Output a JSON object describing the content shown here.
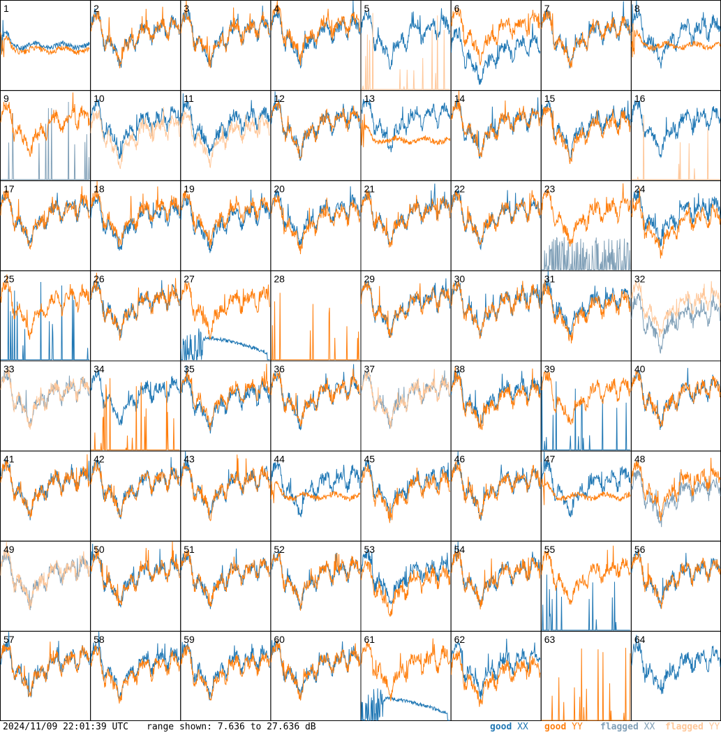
{
  "timestamp": "2024/11/09 22:01:39 UTC",
  "range_text": "range shown: 7.636 to 27.636 dB",
  "legend": [
    {
      "word": "good",
      "pol": "XX",
      "color": "#1f77b4"
    },
    {
      "word": "good",
      "pol": "YY",
      "color": "#ff7f0e"
    },
    {
      "word": "flagged",
      "pol": "XX",
      "color": "#7f9fb7"
    },
    {
      "word": "flagged",
      "pol": "YY",
      "color": "#ffc799"
    }
  ],
  "colors": {
    "good_xx": "#1f77b4",
    "good_yy": "#ff7f0e",
    "flagged_xx": "#7f9fb7",
    "flagged_yy": "#ffc799"
  },
  "chart_data": {
    "type": "line",
    "layout": "small multiples, 8 x 8",
    "y_range_db": [
      7.636,
      27.636
    ],
    "grid": false,
    "legend_position": "bottom-right",
    "panels": [
      {
        "id": "1",
        "xx": "good",
        "yy": "good",
        "xx_shape": "flat",
        "yy_shape": "flat",
        "offset": [
          -1,
          -2
        ]
      },
      {
        "id": "2",
        "xx": "good",
        "yy": "good",
        "xx_shape": "normal",
        "yy_shape": "normal",
        "offset": [
          0,
          0
        ]
      },
      {
        "id": "3",
        "xx": "good",
        "yy": "good",
        "xx_shape": "normal",
        "yy_shape": "normal",
        "offset": [
          0,
          0
        ]
      },
      {
        "id": "4",
        "xx": "good",
        "yy": "good",
        "xx_shape": "normal",
        "yy_shape": "normal",
        "offset": [
          0,
          1
        ]
      },
      {
        "id": "5",
        "xx": "good",
        "yy": "flagged",
        "xx_shape": "normal",
        "yy_shape": "spikes",
        "offset": [
          0,
          0
        ]
      },
      {
        "id": "6",
        "xx": "good",
        "yy": "good",
        "xx_shape": "normal",
        "yy_shape": "normal",
        "offset": [
          -4,
          1
        ]
      },
      {
        "id": "7",
        "xx": "good",
        "yy": "good",
        "xx_shape": "normal",
        "yy_shape": "normal",
        "offset": [
          0,
          0
        ]
      },
      {
        "id": "8",
        "xx": "good",
        "yy": "good",
        "xx_shape": "normal",
        "yy_shape": "flat",
        "offset": [
          0,
          -1
        ]
      },
      {
        "id": "9",
        "xx": "flagged",
        "yy": "good",
        "xx_shape": "spikes",
        "yy_shape": "normal",
        "offset": [
          0,
          0
        ]
      },
      {
        "id": "10",
        "xx": "good",
        "yy": "flagged",
        "xx_shape": "normal",
        "yy_shape": "normal",
        "offset": [
          0,
          -2
        ]
      },
      {
        "id": "11",
        "xx": "good",
        "yy": "flagged",
        "xx_shape": "normal",
        "yy_shape": "normal",
        "offset": [
          0,
          -2
        ]
      },
      {
        "id": "12",
        "xx": "good",
        "yy": "good",
        "xx_shape": "normal",
        "yy_shape": "normal",
        "offset": [
          0,
          0
        ]
      },
      {
        "id": "13",
        "xx": "good",
        "yy": "good",
        "xx_shape": "normal",
        "yy_shape": "flat",
        "offset": [
          1,
          -2
        ]
      },
      {
        "id": "14",
        "xx": "good",
        "yy": "good",
        "xx_shape": "normal",
        "yy_shape": "normal",
        "offset": [
          0,
          0
        ]
      },
      {
        "id": "15",
        "xx": "good",
        "yy": "good",
        "xx_shape": "normal",
        "yy_shape": "normal",
        "offset": [
          0,
          -1
        ]
      },
      {
        "id": "16",
        "xx": "good",
        "yy": "flagged",
        "xx_shape": "normal",
        "yy_shape": "spikes",
        "offset": [
          0,
          0
        ]
      },
      {
        "id": "17",
        "xx": "good",
        "yy": "good",
        "xx_shape": "normal",
        "yy_shape": "normal",
        "offset": [
          0,
          0
        ]
      },
      {
        "id": "18",
        "xx": "good",
        "yy": "good",
        "xx_shape": "normal",
        "yy_shape": "normal",
        "offset": [
          -1,
          0
        ]
      },
      {
        "id": "19",
        "xx": "good",
        "yy": "good",
        "xx_shape": "normal",
        "yy_shape": "normal",
        "offset": [
          -1,
          0
        ]
      },
      {
        "id": "20",
        "xx": "good",
        "yy": "good",
        "xx_shape": "normal",
        "yy_shape": "normal",
        "offset": [
          0,
          -1
        ]
      },
      {
        "id": "21",
        "xx": "good",
        "yy": "good",
        "xx_shape": "normal",
        "yy_shape": "normal",
        "offset": [
          0,
          0
        ]
      },
      {
        "id": "22",
        "xx": "good",
        "yy": "good",
        "xx_shape": "normal",
        "yy_shape": "normal",
        "offset": [
          0,
          0
        ]
      },
      {
        "id": "23",
        "xx": "flagged",
        "yy": "good",
        "xx_shape": "noisy",
        "yy_shape": "normal",
        "offset": [
          -6,
          0
        ]
      },
      {
        "id": "24",
        "xx": "good",
        "yy": "good",
        "xx_shape": "normal",
        "yy_shape": "normal",
        "offset": [
          0,
          -2
        ]
      },
      {
        "id": "25",
        "xx": "good",
        "yy": "good",
        "xx_shape": "spikes",
        "yy_shape": "normal",
        "offset": [
          0,
          0
        ]
      },
      {
        "id": "26",
        "xx": "good",
        "yy": "good",
        "xx_shape": "normal",
        "yy_shape": "normal",
        "offset": [
          0,
          0
        ]
      },
      {
        "id": "27",
        "xx": "good",
        "yy": "good",
        "xx_shape": "decay",
        "yy_shape": "normal",
        "offset": [
          -6,
          0
        ]
      },
      {
        "id": "28",
        "xx": "good",
        "yy": "good",
        "xx_shape": "none",
        "yy_shape": "spikes",
        "offset": [
          0,
          0
        ]
      },
      {
        "id": "29",
        "xx": "good",
        "yy": "good",
        "xx_shape": "normal",
        "yy_shape": "normal",
        "offset": [
          0,
          0
        ]
      },
      {
        "id": "30",
        "xx": "good",
        "yy": "good",
        "xx_shape": "normal",
        "yy_shape": "normal",
        "offset": [
          0,
          0
        ]
      },
      {
        "id": "31",
        "xx": "good",
        "yy": "good",
        "xx_shape": "normal",
        "yy_shape": "normal",
        "offset": [
          0,
          -1
        ]
      },
      {
        "id": "32",
        "xx": "flagged",
        "yy": "flagged",
        "xx_shape": "normal",
        "yy_shape": "normal",
        "offset": [
          -3,
          0
        ]
      },
      {
        "id": "33",
        "xx": "flagged",
        "yy": "flagged",
        "xx_shape": "normal",
        "yy_shape": "normal",
        "offset": [
          0,
          0
        ]
      },
      {
        "id": "34",
        "xx": "good",
        "yy": "good",
        "xx_shape": "normal",
        "yy_shape": "spikes",
        "offset": [
          0,
          0
        ]
      },
      {
        "id": "35",
        "xx": "good",
        "yy": "good",
        "xx_shape": "normal",
        "yy_shape": "normal",
        "offset": [
          -1,
          0
        ]
      },
      {
        "id": "36",
        "xx": "good",
        "yy": "good",
        "xx_shape": "normal",
        "yy_shape": "normal",
        "offset": [
          0,
          0
        ]
      },
      {
        "id": "37",
        "xx": "flagged",
        "yy": "flagged",
        "xx_shape": "normal",
        "yy_shape": "normal",
        "offset": [
          0,
          0
        ]
      },
      {
        "id": "38",
        "xx": "good",
        "yy": "good",
        "xx_shape": "normal",
        "yy_shape": "normal",
        "offset": [
          0,
          -1
        ]
      },
      {
        "id": "39",
        "xx": "good",
        "yy": "good",
        "xx_shape": "spikes",
        "yy_shape": "normal",
        "offset": [
          0,
          0
        ]
      },
      {
        "id": "40",
        "xx": "good",
        "yy": "good",
        "xx_shape": "normal",
        "yy_shape": "normal",
        "offset": [
          0,
          0
        ]
      },
      {
        "id": "41",
        "xx": "good",
        "yy": "good",
        "xx_shape": "normal",
        "yy_shape": "normal",
        "offset": [
          0,
          0
        ]
      },
      {
        "id": "42",
        "xx": "good",
        "yy": "good",
        "xx_shape": "normal",
        "yy_shape": "normal",
        "offset": [
          0,
          0
        ]
      },
      {
        "id": "43",
        "xx": "good",
        "yy": "good",
        "xx_shape": "normal",
        "yy_shape": "normal",
        "offset": [
          0,
          0
        ]
      },
      {
        "id": "44",
        "xx": "good",
        "yy": "good",
        "xx_shape": "normal",
        "yy_shape": "flat",
        "offset": [
          0,
          -1
        ]
      },
      {
        "id": "45",
        "xx": "good",
        "yy": "good",
        "xx_shape": "normal",
        "yy_shape": "normal",
        "offset": [
          0,
          -1
        ]
      },
      {
        "id": "46",
        "xx": "good",
        "yy": "good",
        "xx_shape": "normal",
        "yy_shape": "normal",
        "offset": [
          0,
          0
        ]
      },
      {
        "id": "47",
        "xx": "good",
        "yy": "good",
        "xx_shape": "normal",
        "yy_shape": "flat",
        "offset": [
          0,
          -1
        ]
      },
      {
        "id": "48",
        "xx": "flagged",
        "yy": "good",
        "xx_shape": "normal",
        "yy_shape": "normal",
        "offset": [
          -2,
          0
        ]
      },
      {
        "id": "49",
        "xx": "flagged",
        "yy": "flagged",
        "xx_shape": "normal",
        "yy_shape": "normal",
        "offset": [
          0,
          0
        ]
      },
      {
        "id": "50",
        "xx": "good",
        "yy": "good",
        "xx_shape": "normal",
        "yy_shape": "normal",
        "offset": [
          0,
          0
        ]
      },
      {
        "id": "51",
        "xx": "good",
        "yy": "good",
        "xx_shape": "normal",
        "yy_shape": "normal",
        "offset": [
          0,
          0
        ]
      },
      {
        "id": "52",
        "xx": "good",
        "yy": "good",
        "xx_shape": "normal",
        "yy_shape": "normal",
        "offset": [
          0,
          0
        ]
      },
      {
        "id": "53",
        "xx": "good",
        "yy": "good",
        "xx_shape": "normal",
        "yy_shape": "normal",
        "offset": [
          0,
          -2
        ]
      },
      {
        "id": "54",
        "xx": "good",
        "yy": "good",
        "xx_shape": "normal",
        "yy_shape": "normal",
        "offset": [
          0,
          0
        ]
      },
      {
        "id": "55",
        "xx": "good",
        "yy": "good",
        "xx_shape": "spikes",
        "yy_shape": "normal",
        "offset": [
          0,
          0
        ]
      },
      {
        "id": "56",
        "xx": "good",
        "yy": "good",
        "xx_shape": "normal",
        "yy_shape": "normal",
        "offset": [
          0,
          0
        ]
      },
      {
        "id": "57",
        "xx": "good",
        "yy": "good",
        "xx_shape": "normal",
        "yy_shape": "normal",
        "offset": [
          0,
          0
        ]
      },
      {
        "id": "58",
        "xx": "good",
        "yy": "good",
        "xx_shape": "normal",
        "yy_shape": "normal",
        "offset": [
          0,
          -1
        ]
      },
      {
        "id": "59",
        "xx": "good",
        "yy": "good",
        "xx_shape": "normal",
        "yy_shape": "normal",
        "offset": [
          0,
          -1
        ]
      },
      {
        "id": "60",
        "xx": "good",
        "yy": "good",
        "xx_shape": "normal",
        "yy_shape": "normal",
        "offset": [
          0,
          0
        ]
      },
      {
        "id": "61",
        "xx": "good",
        "yy": "good",
        "xx_shape": "decay",
        "yy_shape": "normal",
        "offset": [
          -6,
          0
        ]
      },
      {
        "id": "62",
        "xx": "good",
        "yy": "good",
        "xx_shape": "normal",
        "yy_shape": "normal",
        "offset": [
          0,
          -2
        ]
      },
      {
        "id": "63",
        "xx": "good",
        "yy": "good",
        "xx_shape": "none",
        "yy_shape": "spikes",
        "offset": [
          0,
          0
        ]
      },
      {
        "id": "64",
        "xx": "good",
        "yy": "good",
        "xx_shape": "normal",
        "yy_shape": "none",
        "offset": [
          0,
          0
        ]
      }
    ]
  }
}
